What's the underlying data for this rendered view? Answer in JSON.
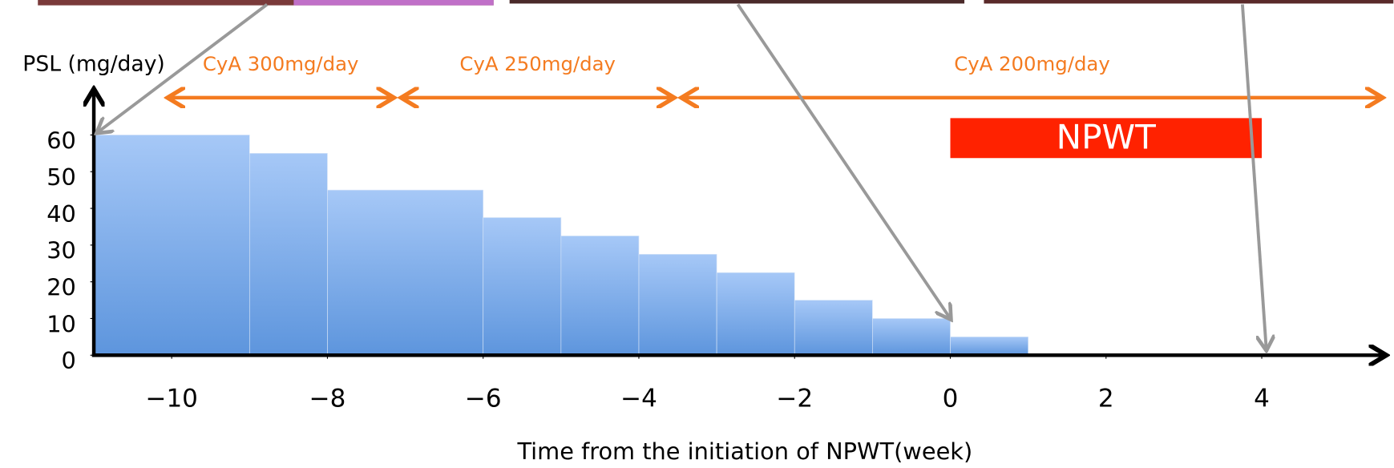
{
  "chart_data": {
    "type": "histogram",
    "y_label": "PSL (mg/day)",
    "x_label": "Time from the initiation of  NPWT(week)",
    "bins": [
      -11,
      -9,
      -8,
      -6,
      -5,
      -4,
      -3,
      -2,
      -1,
      0,
      1
    ],
    "values": [
      60,
      55,
      45,
      37.5,
      32.5,
      27.5,
      22.5,
      15,
      10,
      5
    ],
    "color": "#6fa3e6",
    "xlim": [
      -11,
      5.6
    ],
    "ylim": [
      0,
      60
    ],
    "xticks": [
      {
        "value": -10,
        "label": "−10"
      },
      {
        "value": -8,
        "label": "−8"
      },
      {
        "value": -6,
        "label": "−6"
      },
      {
        "value": -4,
        "label": "−4"
      },
      {
        "value": -2,
        "label": "−2"
      },
      0,
      2,
      4
    ],
    "yticks": [
      0,
      10,
      20,
      30,
      40,
      50,
      60
    ],
    "regimens": [
      {
        "label": "CyA 300mg/day",
        "start": -10.1,
        "end": -7.1
      },
      {
        "label": "CyA 250mg/day",
        "start": -7.1,
        "end": -3.5
      },
      {
        "label": "CyA 200mg/day",
        "start": -3.5,
        "end": 5.6
      }
    ],
    "npwt": {
      "label": "NPWT",
      "start": 0,
      "end": 4
    }
  }
}
